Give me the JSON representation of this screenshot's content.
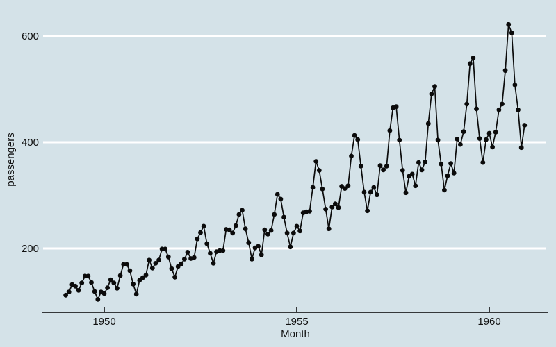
{
  "chart": {
    "xlabel": "Month",
    "ylabel": "passengers"
  },
  "colors": {
    "background": "#d4e2e8",
    "gridline": "#ffffff",
    "series": "#0b0b0b",
    "axis": "#000000",
    "text": "#111111"
  },
  "chart_data": {
    "type": "line",
    "title": "",
    "xlabel": "Month",
    "ylabel": "passengers",
    "x_start_year": 1949,
    "points_per_year": 12,
    "x_ticks": [
      1950,
      1955,
      1960
    ],
    "x_tick_labels": [
      "1950",
      "1955",
      "1960"
    ],
    "y_ticks": [
      200,
      400,
      600
    ],
    "y_tick_labels": [
      "200",
      "400",
      "600"
    ],
    "ylim": [
      80,
      650
    ],
    "xlim": [
      1948.8,
      1961.1
    ],
    "grid": "horizontal-only",
    "legend": "none",
    "marker": "filled-circle",
    "series": [
      {
        "name": "passengers",
        "values": [
          112,
          118,
          132,
          129,
          121,
          135,
          148,
          148,
          136,
          119,
          104,
          118,
          115,
          126,
          141,
          135,
          125,
          149,
          170,
          170,
          158,
          133,
          114,
          140,
          145,
          150,
          178,
          163,
          172,
          178,
          199,
          199,
          184,
          162,
          146,
          166,
          171,
          180,
          193,
          181,
          183,
          218,
          230,
          242,
          209,
          191,
          172,
          194,
          196,
          196,
          236,
          235,
          229,
          243,
          264,
          272,
          237,
          211,
          180,
          201,
          204,
          188,
          235,
          227,
          234,
          264,
          302,
          293,
          259,
          229,
          203,
          229,
          242,
          233,
          267,
          269,
          270,
          315,
          364,
          347,
          312,
          274,
          237,
          278,
          284,
          277,
          317,
          313,
          318,
          374,
          413,
          405,
          355,
          306,
          271,
          306,
          315,
          301,
          356,
          348,
          355,
          422,
          465,
          467,
          404,
          347,
          305,
          336,
          340,
          318,
          362,
          348,
          363,
          435,
          491,
          505,
          404,
          359,
          310,
          337,
          360,
          342,
          406,
          396,
          420,
          472,
          548,
          559,
          463,
          407,
          362,
          405,
          417,
          391,
          419,
          461,
          472,
          535,
          622,
          606,
          508,
          461,
          390,
          432
        ]
      }
    ]
  }
}
